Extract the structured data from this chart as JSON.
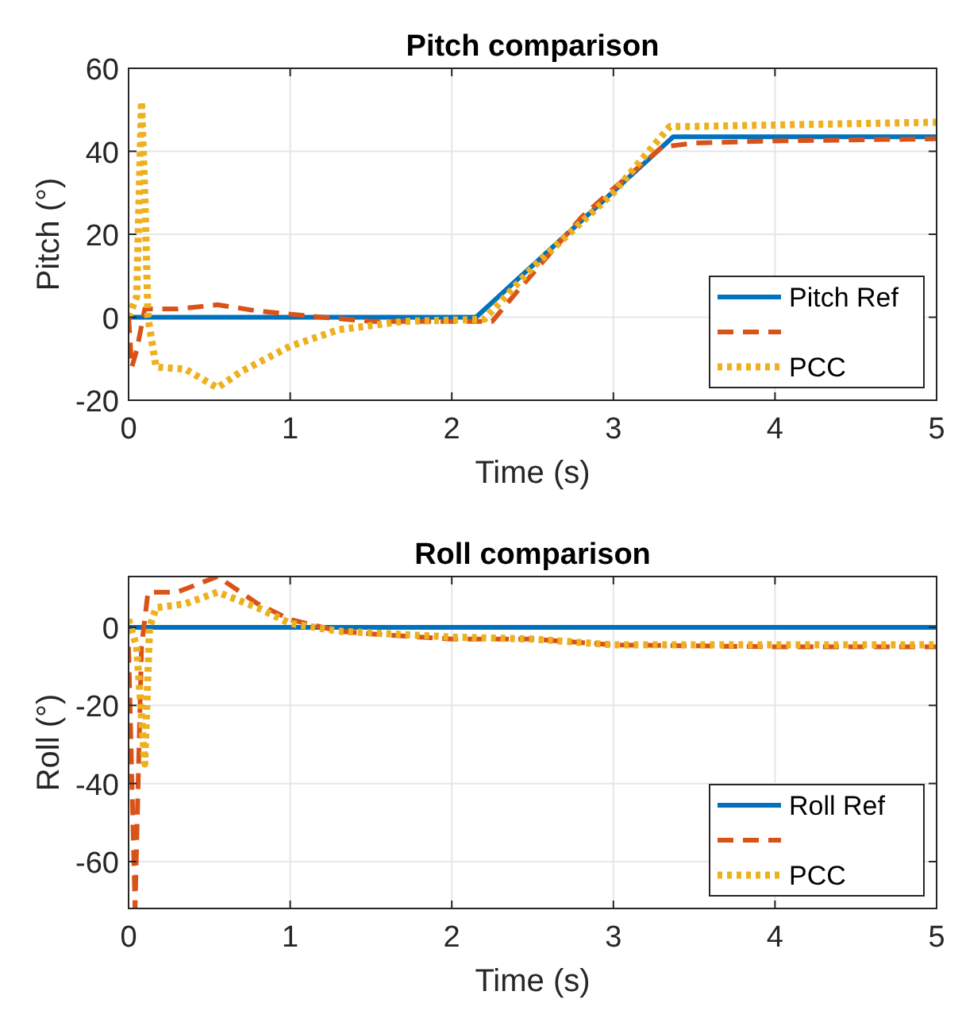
{
  "chart_data": [
    {
      "type": "line",
      "title": "Pitch comparison",
      "xlabel": "Time (s)",
      "ylabel": "Pitch (°)",
      "xlim": [
        0,
        5
      ],
      "xticks": [
        0,
        1,
        2,
        3,
        4,
        5
      ],
      "ylim": [
        -20,
        60
      ],
      "yticks": [
        -20,
        0,
        20,
        40,
        60
      ],
      "grid": true,
      "legend": "bottom right",
      "series": [
        {
          "name": "Pitch Ref",
          "color": "#0072bd",
          "line_style": "solid",
          "x": [
            0,
            2.15,
            3.37,
            5
          ],
          "values": [
            0,
            0,
            43.5,
            43.5
          ]
        },
        {
          "color": "#d95319",
          "line_style": "dashed",
          "x": [
            0,
            0.02,
            0.05,
            0.1,
            0.3,
            0.55,
            0.8,
            1.2,
            1.5,
            1.8,
            2.1,
            2.25,
            2.4,
            2.8,
            3.0,
            3.3,
            3.5,
            4,
            5
          ],
          "values": [
            0,
            -12,
            -8,
            2,
            2,
            3,
            1.5,
            0,
            -1,
            -1,
            -1,
            -1,
            6,
            24,
            31,
            41,
            42,
            42.5,
            43
          ]
        },
        {
          "name": "PCC",
          "color": "#edb120",
          "line_style": "dotted",
          "x": [
            0,
            0.05,
            0.08,
            0.1,
            0.12,
            0.17,
            0.35,
            0.55,
            0.7,
            1,
            1.3,
            1.7,
            2.2,
            2.5,
            3,
            3.35,
            3.5,
            5
          ],
          "values": [
            0,
            5,
            52,
            30,
            0,
            -12,
            -12.5,
            -17,
            -13,
            -7,
            -3,
            -1,
            -0.5,
            12,
            30,
            46,
            46,
            47
          ]
        }
      ]
    },
    {
      "type": "line",
      "title": "Roll comparison",
      "xlabel": "Time (s)",
      "ylabel": "Roll (°)",
      "xlim": [
        0,
        5
      ],
      "xticks": [
        0,
        1,
        2,
        3,
        4,
        5
      ],
      "ylim": [
        -72,
        13
      ],
      "yticks": [
        -60,
        -40,
        -20,
        0
      ],
      "grid": true,
      "legend": "bottom right",
      "series": [
        {
          "name": "Roll Ref",
          "color": "#0072bd",
          "line_style": "solid",
          "x": [
            0,
            5
          ],
          "values": [
            0,
            0
          ]
        },
        {
          "color": "#d95319",
          "line_style": "dashed",
          "x": [
            0,
            0.04,
            0.08,
            0.12,
            0.3,
            0.55,
            0.8,
            1,
            1.3,
            1.6,
            2,
            2.5,
            3,
            4,
            5
          ],
          "values": [
            -5,
            -72,
            -5,
            9,
            9,
            13,
            6,
            2,
            -1,
            -2,
            -3,
            -3,
            -4.5,
            -5,
            -5
          ]
        },
        {
          "name": "PCC",
          "color": "#edb120",
          "line_style": "dotted",
          "x": [
            0,
            0.05,
            0.1,
            0.13,
            0.17,
            0.35,
            0.55,
            0.8,
            1,
            1.3,
            2,
            2.5,
            3,
            5
          ],
          "values": [
            2,
            -5,
            -35,
            0,
            5,
            6,
            9,
            5,
            1,
            -1,
            -2.5,
            -3,
            -4.5,
            -4.5
          ]
        }
      ]
    }
  ]
}
